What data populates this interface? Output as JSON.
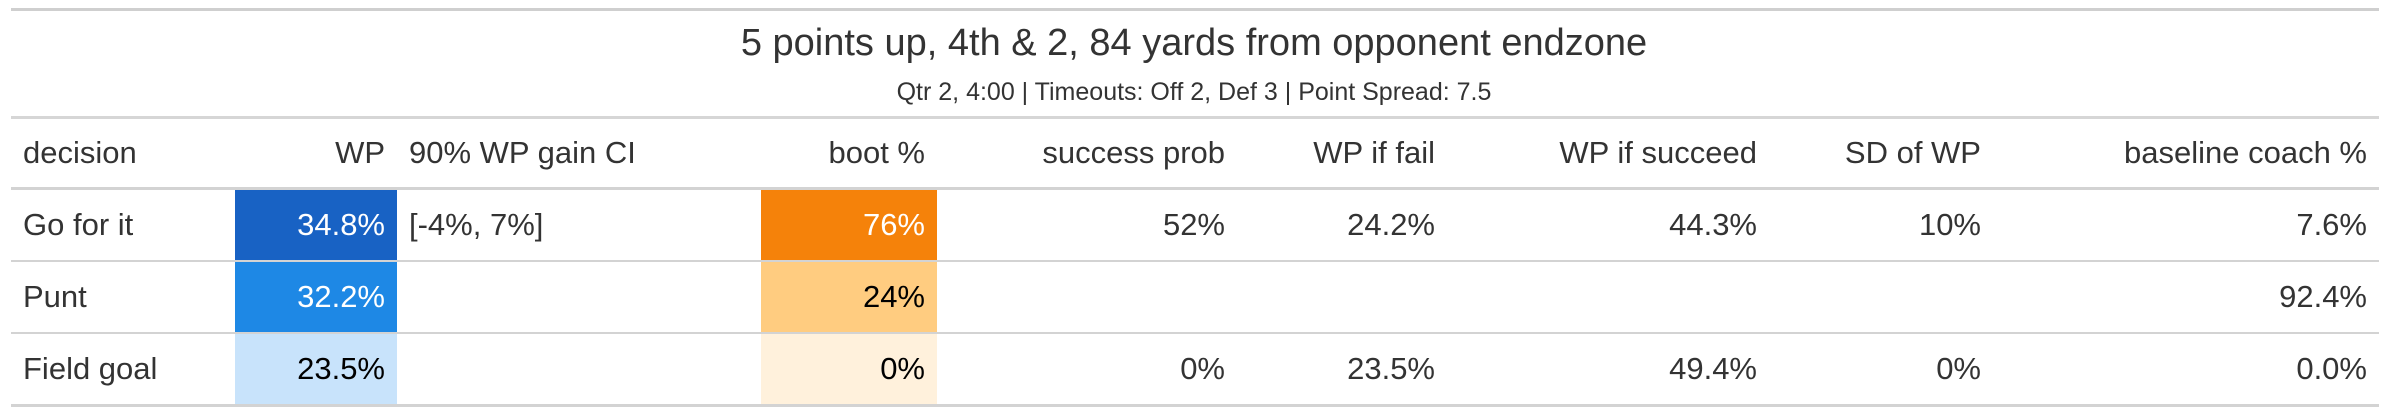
{
  "header": {
    "title": "5 points up, 4th & 2, 84 yards from opponent endzone",
    "subtitle": "Qtr 2, 4:00 | Timeouts: Off 2, Def 3 | Point Spread: 7.5"
  },
  "table": {
    "columns": [
      "decision",
      "WP",
      "90% WP gain CI",
      "boot %",
      "success prob",
      "WP if fail",
      "WP if succeed",
      "SD of WP",
      "baseline coach %"
    ],
    "rows": [
      {
        "decision": "Go for it",
        "wp": "34.8%",
        "ci": "[-4%, 7%]",
        "boot": "76%",
        "success_prob": "52%",
        "wp_fail": "24.2%",
        "wp_succeed": "44.3%",
        "sd_wp": "10%",
        "baseline": "7.6%"
      },
      {
        "decision": "Punt",
        "wp": "32.2%",
        "ci": "",
        "boot": "24%",
        "success_prob": "",
        "wp_fail": "",
        "wp_succeed": "",
        "sd_wp": "",
        "baseline": "92.4%"
      },
      {
        "decision": "Field goal",
        "wp": "23.5%",
        "ci": "",
        "boot": "0%",
        "success_prob": "0%",
        "wp_fail": "23.5%",
        "wp_succeed": "49.4%",
        "sd_wp": "0%",
        "baseline": "0.0%"
      }
    ]
  },
  "colors": {
    "wp_cells": [
      "#1862c4",
      "#1e88e5",
      "#c8e3fb"
    ],
    "wp_text": [
      "#ffffff",
      "#ffffff",
      "#000000"
    ],
    "boot_cells": [
      "#f5820a",
      "#ffcc80",
      "#fff1dc"
    ],
    "boot_text": [
      "#ffffff",
      "#000000",
      "#000000"
    ]
  }
}
